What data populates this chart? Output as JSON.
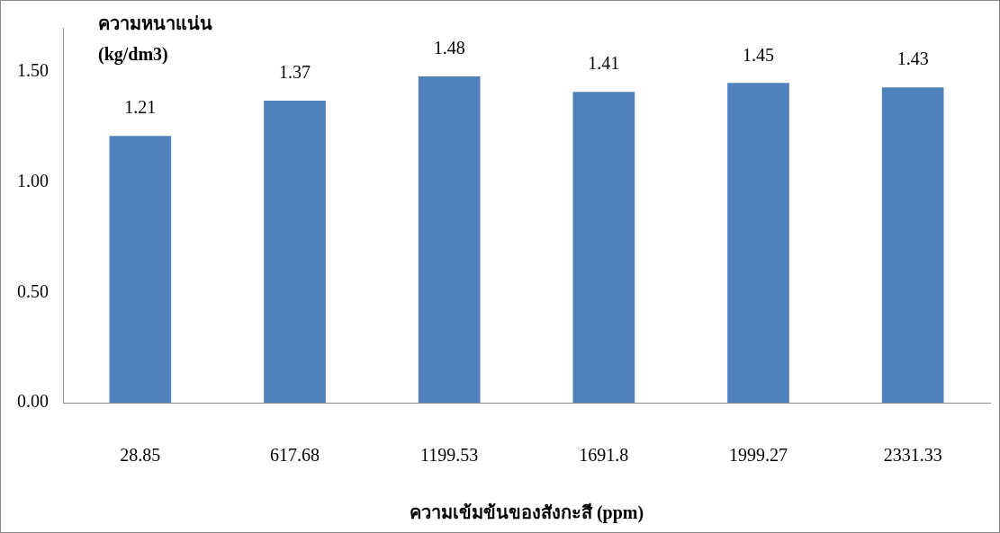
{
  "chart_data": {
    "type": "bar",
    "ylabel": "ความหนาแน่น\n(kg/dm3)",
    "xlabel": "ความเข้มข้นของสังกะสี (ppm)",
    "categories": [
      "28.85",
      "617.68",
      "1199.53",
      "1691.8",
      "1999.27",
      "2331.33"
    ],
    "values": [
      1.21,
      1.37,
      1.48,
      1.41,
      1.45,
      1.43
    ],
    "color": "#4f81bd",
    "ylim": [
      0,
      1.7
    ],
    "yticks": [
      {
        "value": 0,
        "label": "0.00"
      },
      {
        "value": 0.5,
        "label": "0.50"
      },
      {
        "value": 1,
        "label": "1.00"
      },
      {
        "value": 1.5,
        "label": "1.50"
      }
    ],
    "data_labels": true,
    "grid": false,
    "legend": false
  }
}
